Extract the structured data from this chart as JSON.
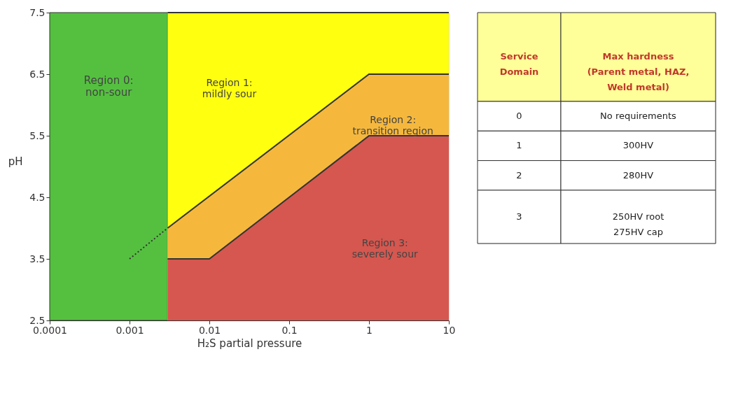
{
  "chart_data": [
    {
      "type": "area",
      "xlabel": "H₂S partial pressure",
      "ylabel": "pH",
      "xlim": [
        0.0001,
        10
      ],
      "xticks": [
        0.0001,
        0.001,
        0.01,
        0.1,
        1,
        10
      ],
      "log": "x",
      "ylim": [
        2.5,
        7.5
      ],
      "yticks": [
        {
          "value": 2.5,
          "label": "2.5"
        },
        {
          "value": 3.5,
          "label": "3.5"
        },
        {
          "value": 4.5,
          "label": "4.5"
        },
        {
          "value": 5.5,
          "label": "5.5"
        },
        {
          "value": 6.5,
          "label": "6.5"
        },
        {
          "value": 7.5,
          "label": "7.5"
        }
      ],
      "grid": false,
      "bands": [
        {
          "axis": "x",
          "from": 0.0001,
          "to": 0.003,
          "label": "Region 0:\nnon-sour",
          "color": "#55c040"
        }
      ],
      "series": [
        {
          "type": "area",
          "name": "Region 1:\nmildly sour",
          "color": "#ffff10",
          "x": [
            0.003,
            10
          ],
          "values": [
            7.5,
            7.5
          ]
        },
        {
          "type": "area",
          "name": "Region 2:\ntransition region",
          "color": "#f5b83d",
          "x": [
            0.003,
            1,
            10
          ],
          "values": [
            4.0,
            6.5,
            6.5
          ]
        },
        {
          "type": "area",
          "name": "Region 3:\nseverely sour",
          "color": "#d5574f",
          "x": [
            0.003,
            0.01,
            1,
            10
          ],
          "values": [
            3.5,
            3.5,
            5.5,
            5.5
          ]
        },
        {
          "type": "line",
          "color": "#333333",
          "line_style": "dotted",
          "x": [
            0.001,
            0.003
          ],
          "values": [
            3.5,
            4.0
          ]
        }
      ]
    },
    {
      "type": "other",
      "annotations": [
        "Service\nDomain",
        "Max hardness\n(Parent metal, HAZ,\nWeld metal)",
        "0",
        "No requirements",
        "1",
        "300HV",
        "2",
        "280HV",
        "3",
        "250HV root\n275HV cap"
      ]
    }
  ]
}
